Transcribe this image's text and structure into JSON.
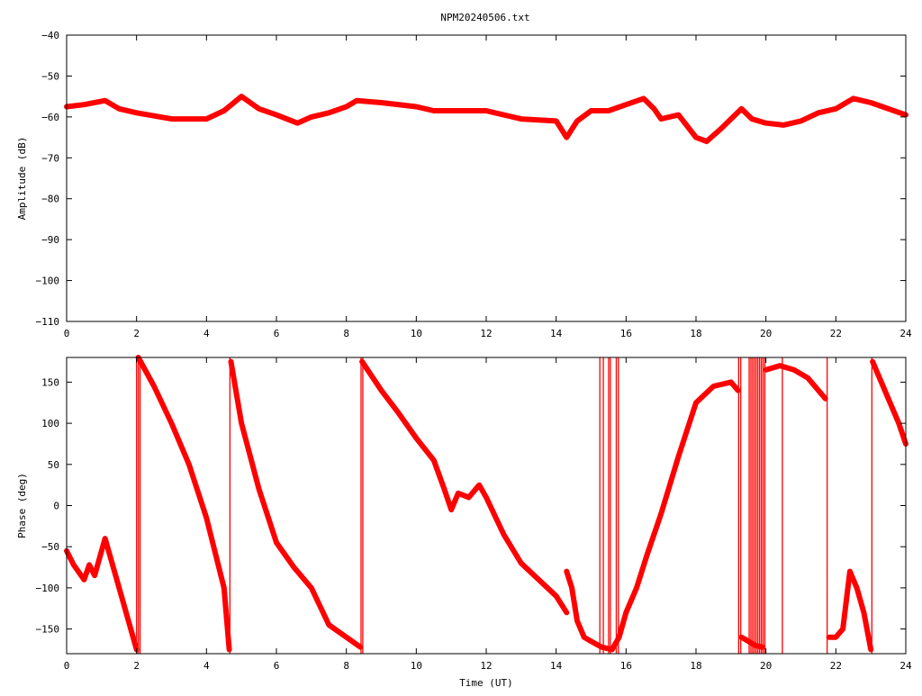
{
  "chart_data": [
    {
      "type": "line",
      "title": "NPM20240506.txt",
      "xlabel": "",
      "ylabel": "Amplitude (dB)",
      "xlim": [
        0,
        24
      ],
      "ylim": [
        -110,
        -40
      ],
      "xticks": [
        0,
        2,
        4,
        6,
        8,
        10,
        12,
        14,
        16,
        18,
        20,
        22,
        24
      ],
      "yticks": [
        -110,
        -100,
        -90,
        -80,
        -70,
        -60,
        -50,
        -40
      ],
      "xtick_labels": [
        "0",
        "2",
        "4",
        "6",
        "8",
        "10",
        "12",
        "14",
        "16",
        "18",
        "20",
        "22",
        "24"
      ],
      "ytick_labels": [
        "−110",
        "−100",
        "−90",
        "−80",
        "−70",
        "−60",
        "−50",
        "−40"
      ],
      "grid": false,
      "color": "#ff0000",
      "x": [
        0,
        0.5,
        1.1,
        1.5,
        2.0,
        3.0,
        4.0,
        4.5,
        5.0,
        5.5,
        6.0,
        6.6,
        7.0,
        7.5,
        8.0,
        8.3,
        9.0,
        10.0,
        10.5,
        11.0,
        12.0,
        13.0,
        14.0,
        14.3,
        14.6,
        15.0,
        15.5,
        16.0,
        16.5,
        16.8,
        17.0,
        17.5,
        18.0,
        18.3,
        18.7,
        19.3,
        19.6,
        20.0,
        20.5,
        21.0,
        21.5,
        22.0,
        22.5,
        23.0,
        23.5,
        24.0
      ],
      "values": [
        -57.5,
        -57,
        -56,
        -58,
        -59,
        -60.5,
        -60.5,
        -58.5,
        -55,
        -58,
        -59.5,
        -61.5,
        -60,
        -59,
        -57.5,
        -56,
        -56.5,
        -57.5,
        -58.5,
        -58.5,
        -58.5,
        -60.5,
        -61,
        -65,
        -61,
        -58.5,
        -58.5,
        -57,
        -55.5,
        -58,
        -60.5,
        -59.5,
        -65,
        -66,
        -63,
        -58,
        -60.5,
        -61.5,
        -62,
        -61,
        -59,
        -58,
        -55.5,
        -56.5,
        -58,
        -59.5
      ]
    },
    {
      "type": "line",
      "title": "",
      "xlabel": "Time (UT)",
      "ylabel": "Phase (deg)",
      "xlim": [
        0,
        24
      ],
      "ylim": [
        -180,
        180
      ],
      "xticks": [
        0,
        2,
        4,
        6,
        8,
        10,
        12,
        14,
        16,
        18,
        20,
        22,
        24
      ],
      "yticks": [
        -150,
        -100,
        -50,
        0,
        50,
        100,
        150
      ],
      "xtick_labels": [
        "0",
        "2",
        "4",
        "6",
        "8",
        "10",
        "12",
        "14",
        "16",
        "18",
        "20",
        "22",
        "24"
      ],
      "ytick_labels": [
        "−150",
        "−100",
        "−50",
        "0",
        "50",
        "100",
        "150"
      ],
      "grid": false,
      "color": "#ff0000",
      "segments": [
        {
          "x": [
            0,
            0.2,
            0.5,
            0.65,
            0.8,
            1.1,
            1.5,
            2.0
          ],
          "values": [
            -55,
            -72,
            -90,
            -72,
            -85,
            -40,
            -100,
            -175
          ]
        },
        {
          "x": [
            2.05,
            2.5,
            3.0,
            3.5,
            4.0,
            4.5,
            4.65
          ],
          "values": [
            180,
            145,
            100,
            50,
            -15,
            -100,
            -175
          ]
        },
        {
          "x": [
            4.7,
            5.0,
            5.5,
            6.0,
            6.5,
            7.0,
            7.5,
            8.0,
            8.4
          ],
          "values": [
            175,
            100,
            20,
            -45,
            -75,
            -100,
            -145,
            -160,
            -172
          ]
        },
        {
          "x": [
            8.45,
            9.0,
            9.5,
            10.0,
            10.5,
            10.8,
            11.0,
            11.2,
            11.5,
            11.8,
            12.0,
            12.5,
            13.0,
            13.5,
            14.0,
            14.3
          ],
          "values": [
            175,
            140,
            112,
            82,
            55,
            20,
            -5,
            15,
            10,
            25,
            10,
            -35,
            -70,
            -90,
            -110,
            -130
          ]
        },
        {
          "x": [
            14.3,
            14.45,
            14.6,
            14.8,
            15.0,
            15.3,
            15.6,
            15.8,
            16.0,
            16.3,
            16.6,
            17.0,
            17.5,
            18.0,
            18.5,
            19.0,
            19.2
          ],
          "values": [
            -80,
            -100,
            -140,
            -160,
            -165,
            -172,
            -175,
            -160,
            -130,
            -100,
            -60,
            -10,
            60,
            125,
            145,
            150,
            140
          ]
        },
        {
          "x": [
            19.3,
            19.5,
            19.7,
            19.9
          ],
          "values": [
            -160,
            -165,
            -170,
            -172
          ]
        },
        {
          "x": [
            20.0,
            20.4,
            20.8,
            21.2,
            21.5,
            21.7
          ],
          "values": [
            165,
            170,
            165,
            155,
            140,
            130
          ]
        },
        {
          "x": [
            21.8,
            22.0,
            22.2,
            22.4,
            22.6,
            22.8,
            23.0
          ],
          "values": [
            -160,
            -160,
            -150,
            -80,
            -100,
            -130,
            -175
          ]
        },
        {
          "x": [
            23.05,
            23.4,
            23.8,
            24.0
          ],
          "values": [
            175,
            140,
            100,
            75
          ]
        }
      ],
      "wraps": [
        2.0,
        2.05,
        2.1,
        4.67,
        8.42,
        8.47,
        15.25,
        15.35,
        15.5,
        15.55,
        15.72,
        15.78,
        19.22,
        19.28,
        19.52,
        19.57,
        19.62,
        19.67,
        19.72,
        19.77,
        19.82,
        19.87,
        19.92,
        19.97,
        20.47,
        21.75,
        23.03
      ]
    }
  ]
}
